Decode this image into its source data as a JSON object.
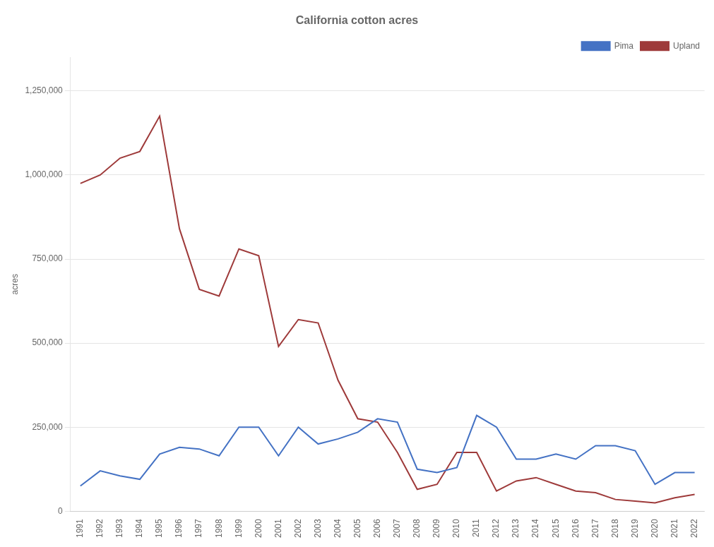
{
  "chart_data": {
    "type": "line",
    "title": "California cotton acres",
    "ylabel": "acres",
    "x": [
      1991,
      1992,
      1993,
      1994,
      1995,
      1996,
      1997,
      1998,
      1999,
      2000,
      2001,
      2002,
      2003,
      2004,
      2005,
      2006,
      2007,
      2008,
      2009,
      2010,
      2011,
      2012,
      2013,
      2014,
      2015,
      2016,
      2017,
      2018,
      2019,
      2020,
      2021,
      2022
    ],
    "series": [
      {
        "name": "Pima",
        "color": "#4472C4",
        "values": [
          75000,
          120000,
          105000,
          95000,
          170000,
          190000,
          185000,
          165000,
          250000,
          250000,
          165000,
          250000,
          200000,
          215000,
          235000,
          275000,
          265000,
          125000,
          115000,
          130000,
          285000,
          250000,
          155000,
          155000,
          170000,
          155000,
          195000,
          195000,
          180000,
          80000,
          115000,
          115000
        ]
      },
      {
        "name": "Upland",
        "color": "#9E3A3A",
        "values": [
          975000,
          1000000,
          1050000,
          1070000,
          1175000,
          840000,
          660000,
          640000,
          780000,
          760000,
          490000,
          570000,
          560000,
          390000,
          275000,
          265000,
          175000,
          65000,
          80000,
          175000,
          175000,
          60000,
          90000,
          100000,
          80000,
          60000,
          55000,
          35000,
          30000,
          25000,
          40000,
          50000
        ]
      }
    ],
    "xlim": [
      1990.5,
      2022.5
    ],
    "xticks": [
      1991,
      1992,
      1993,
      1994,
      1995,
      1996,
      1997,
      1998,
      1999,
      2000,
      2001,
      2002,
      2003,
      2004,
      2005,
      2006,
      2007,
      2008,
      2009,
      2010,
      2011,
      2012,
      2013,
      2014,
      2015,
      2016,
      2017,
      2018,
      2019,
      2020,
      2021,
      2022
    ],
    "ylim": [
      0,
      1350000
    ],
    "yticks": [
      0,
      {
        "value": 250000,
        "label": "250,000"
      },
      {
        "value": 500000,
        "label": "500,000"
      },
      {
        "value": 750000,
        "label": "750,000"
      },
      {
        "value": 1000000,
        "label": "1,000,000"
      },
      {
        "value": 1250000,
        "label": "1,250,000"
      }
    ],
    "grid": "y",
    "legend": "upper right"
  }
}
